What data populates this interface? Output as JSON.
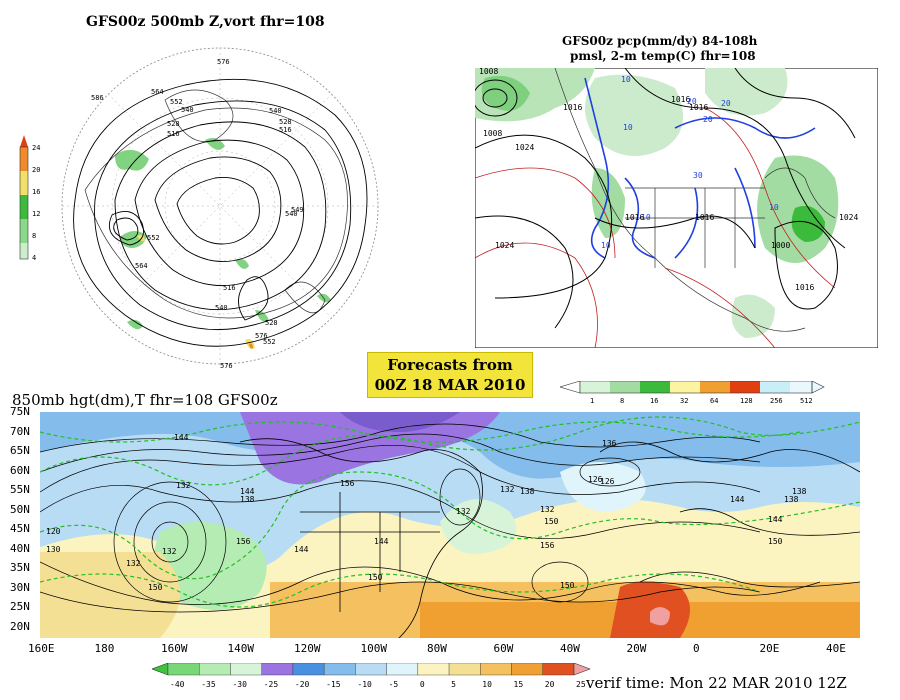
{
  "panel_500mb": {
    "title": "GFS00z   500mb  Z,vort     fhr=108",
    "colorbar_ticks": [
      "24",
      "20",
      "16",
      "12",
      "8",
      "4"
    ],
    "contour_labels": [
      "576",
      "564",
      "552",
      "540",
      "528",
      "516",
      "586",
      "540",
      "528",
      "516",
      "540",
      "549",
      "552",
      "564",
      "576",
      "576",
      "552",
      "528",
      "540",
      "516"
    ]
  },
  "panel_precip": {
    "title_line1": "GFS00z  pcp(mm/dy) 84-108h",
    "title_line2": "pmsl, 2-m temp(C)   fhr=108",
    "isobar_labels": [
      "1008",
      "1016",
      "1024",
      "1016",
      "1016",
      "1024",
      "1016",
      "1016",
      "1008",
      "1024",
      "1000",
      "1016"
    ],
    "temp_labels": [
      "10",
      "20",
      "10",
      "30",
      "10",
      "20",
      "10",
      "20",
      "10"
    ],
    "colorbar_ticks": [
      "1",
      "8",
      "16",
      "32",
      "64",
      "128",
      "256",
      "512"
    ]
  },
  "forecast_badge": {
    "line1": "Forecasts from",
    "line2": "00Z 18 MAR 2010"
  },
  "panel_850mb": {
    "title": "850mb hgt(dm),T   fhr=108 GFS00z",
    "lat_labels": [
      "75N",
      "70N",
      "65N",
      "60N",
      "55N",
      "50N",
      "45N",
      "40N",
      "35N",
      "30N",
      "25N",
      "20N"
    ],
    "lon_labels": [
      "160E",
      "180",
      "160W",
      "140W",
      "120W",
      "100W",
      "80W",
      "60W",
      "40W",
      "20W",
      "0",
      "20E",
      "40E"
    ],
    "height_labels": [
      "144",
      "132",
      "138",
      "144",
      "126",
      "138",
      "156",
      "132",
      "132",
      "130",
      "144",
      "150",
      "132",
      "156",
      "150",
      "156",
      "150",
      "150",
      "144",
      "136",
      "138",
      "126",
      "132",
      "138",
      "144",
      "150",
      "120",
      "132",
      "144"
    ],
    "colorbar_ticks": [
      "-40",
      "-35",
      "-30",
      "-25",
      "-20",
      "-15",
      "-10",
      "-5",
      "0",
      "5",
      "10",
      "15",
      "20",
      "25"
    ],
    "colors": [
      "#3cc43c",
      "#78d878",
      "#b4ecb4",
      "#d8f4d8",
      "#9a74e0",
      "#4a90e0",
      "#84bcec",
      "#b8dcf4",
      "#e0f4fc",
      "#fcf4c0",
      "#f4e094",
      "#f4c060",
      "#f0a030",
      "#e05020",
      "#f0a0a0"
    ]
  },
  "verif_time": "verif time: Mon 22 MAR 2010 12Z"
}
